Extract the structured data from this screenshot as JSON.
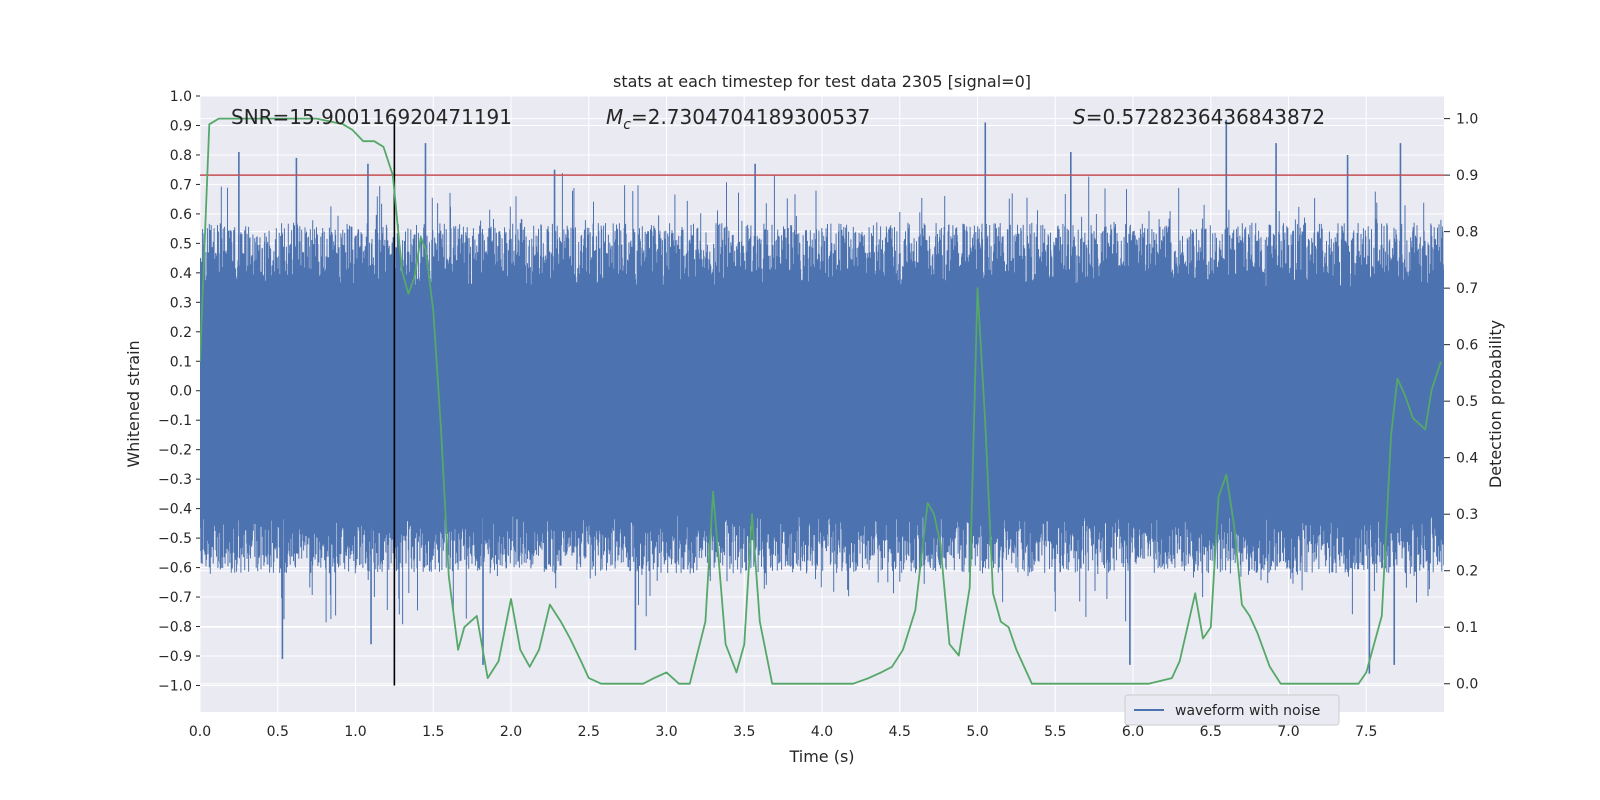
{
  "chart_data": {
    "type": "line",
    "title": "stats at each timestep for test data 2305 [signal=0]",
    "xlabel": "Time (s)",
    "ylabel": "Whitened strain",
    "y2label": "Detection probability",
    "xlim": [
      0.0,
      8.0
    ],
    "ylim": [
      -1.09,
      1.0
    ],
    "y2lim": [
      -0.05,
      1.04
    ],
    "xticks": [
      0.0,
      0.5,
      1.0,
      1.5,
      2.0,
      2.5,
      3.0,
      3.5,
      4.0,
      4.5,
      5.0,
      5.5,
      6.0,
      6.5,
      7.0,
      7.5
    ],
    "xtick_labels": [
      "0.0",
      "0.5",
      "1.0",
      "1.5",
      "2.0",
      "2.5",
      "3.0",
      "3.5",
      "4.0",
      "4.5",
      "5.0",
      "5.5",
      "6.0",
      "6.5",
      "7.0",
      "7.5"
    ],
    "yticks": [
      1.0,
      0.9,
      0.8,
      0.7,
      0.6,
      0.5,
      0.4,
      0.3,
      0.2,
      0.1,
      0.0,
      -0.1,
      -0.2,
      -0.3,
      -0.4,
      -0.5,
      -0.6,
      -0.7,
      -0.8,
      -0.9,
      -1.0
    ],
    "ytick_labels": [
      "1.0",
      "0.9",
      "0.8",
      "0.7",
      "0.6",
      "0.5",
      "0.4",
      "0.3",
      "0.2",
      "0.1",
      "0.0",
      "−0.1",
      "−0.2",
      "−0.3",
      "−0.4",
      "−0.5",
      "−0.6",
      "−0.7",
      "−0.8",
      "−0.9",
      "−1.0"
    ],
    "y2ticks": [
      1.0,
      0.9,
      0.8,
      0.7,
      0.6,
      0.5,
      0.4,
      0.3,
      0.2,
      0.1,
      0.0
    ],
    "y2tick_labels": [
      "1.0",
      "0.9",
      "0.8",
      "0.7",
      "0.6",
      "0.5",
      "0.4",
      "0.3",
      "0.2",
      "0.1",
      "0.0"
    ],
    "grid": true,
    "legend": {
      "placement": "lower-right",
      "entries": [
        {
          "label": "waveform with noise",
          "color": "#4c72b0"
        }
      ]
    },
    "annotations": {
      "snr": "SNR=15.900116920471191",
      "mc_symbol": "M",
      "mc_sub": "c",
      "mc_value": "=2.7304704189300537",
      "s_symbol": "S",
      "s_value": "=0.5728236436843872"
    },
    "waveform": {
      "name": "waveform with noise",
      "color": "#4c72b0",
      "peaks_high": [
        [
          0.25,
          0.81
        ],
        [
          0.62,
          0.79
        ],
        [
          1.08,
          0.77
        ],
        [
          1.45,
          0.84
        ],
        [
          2.28,
          0.75
        ],
        [
          3.57,
          0.77
        ],
        [
          5.05,
          0.91
        ],
        [
          5.6,
          0.81
        ],
        [
          6.6,
          0.92
        ],
        [
          6.92,
          0.84
        ],
        [
          7.38,
          0.8
        ],
        [
          7.72,
          0.84
        ]
      ],
      "peaks_low": [
        [
          0.53,
          -0.91
        ],
        [
          1.1,
          -0.86
        ],
        [
          1.82,
          -0.93
        ],
        [
          2.8,
          -0.88
        ],
        [
          5.98,
          -0.93
        ],
        [
          7.52,
          -0.96
        ],
        [
          7.68,
          -0.93
        ]
      ]
    },
    "probability": {
      "name": "detection probability",
      "color": "#55a868",
      "x": [
        0.0,
        0.06,
        0.12,
        0.22,
        0.5,
        0.75,
        0.92,
        0.98,
        1.05,
        1.12,
        1.18,
        1.24,
        1.3,
        1.34,
        1.38,
        1.42,
        1.45,
        1.5,
        1.55,
        1.6,
        1.66,
        1.7,
        1.78,
        1.85,
        1.92,
        2.0,
        2.06,
        2.12,
        2.18,
        2.25,
        2.32,
        2.38,
        2.45,
        2.5,
        2.58,
        2.65,
        2.75,
        2.85,
        2.92,
        3.0,
        3.08,
        3.15,
        3.25,
        3.3,
        3.38,
        3.45,
        3.5,
        3.55,
        3.6,
        3.68,
        3.75,
        3.85,
        4.0,
        4.2,
        4.3,
        4.38,
        4.45,
        4.52,
        4.6,
        4.68,
        4.72,
        4.76,
        4.82,
        4.88,
        4.95,
        5.0,
        5.05,
        5.1,
        5.15,
        5.2,
        5.25,
        5.35,
        5.45,
        5.6,
        5.8,
        6.0,
        6.1,
        6.25,
        6.3,
        6.4,
        6.45,
        6.5,
        6.55,
        6.6,
        6.65,
        6.7,
        6.75,
        6.8,
        6.88,
        6.95,
        7.05,
        7.15,
        7.25,
        7.35,
        7.45,
        7.5,
        7.6,
        7.66,
        7.7,
        7.75,
        7.8,
        7.88,
        7.92,
        7.98
      ],
      "y": [
        0.57,
        0.99,
        1.0,
        1.0,
        1.0,
        1.0,
        0.99,
        0.98,
        0.96,
        0.96,
        0.95,
        0.9,
        0.73,
        0.69,
        0.72,
        0.79,
        0.77,
        0.66,
        0.45,
        0.19,
        0.06,
        0.1,
        0.12,
        0.01,
        0.04,
        0.15,
        0.06,
        0.03,
        0.06,
        0.14,
        0.11,
        0.08,
        0.04,
        0.01,
        0.0,
        0.0,
        0.0,
        0.0,
        0.01,
        0.02,
        0.0,
        0.0,
        0.11,
        0.34,
        0.07,
        0.02,
        0.07,
        0.3,
        0.11,
        0.0,
        0.0,
        0.0,
        0.0,
        0.0,
        0.01,
        0.02,
        0.03,
        0.06,
        0.13,
        0.32,
        0.3,
        0.25,
        0.07,
        0.05,
        0.17,
        0.7,
        0.46,
        0.16,
        0.11,
        0.1,
        0.06,
        0.0,
        0.0,
        0.0,
        0.0,
        0.0,
        0.0,
        0.01,
        0.04,
        0.16,
        0.08,
        0.1,
        0.33,
        0.37,
        0.28,
        0.14,
        0.12,
        0.09,
        0.03,
        0.0,
        0.0,
        0.0,
        0.0,
        0.0,
        0.0,
        0.02,
        0.12,
        0.44,
        0.54,
        0.51,
        0.47,
        0.45,
        0.52,
        0.57
      ]
    },
    "threshold": {
      "y2": 0.9,
      "color": "#c44e52"
    },
    "marker_line": {
      "x": 1.25,
      "color": "#000000"
    }
  }
}
